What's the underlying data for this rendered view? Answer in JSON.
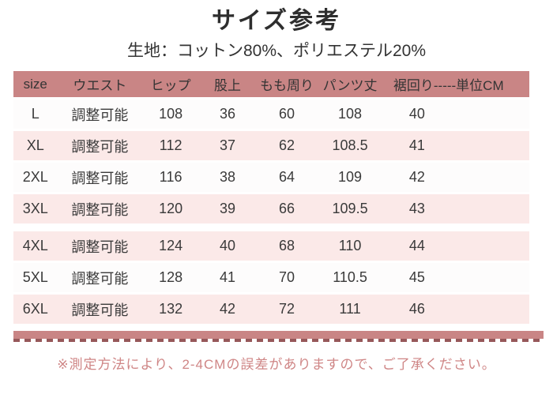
{
  "page": {
    "title": "サイズ参考",
    "subtitle": "生地：コットン80%、ポリエステル20%",
    "footnote": "※測定方法により、2-4CMの誤差がありますので、ご了承ください。"
  },
  "table": {
    "headers": [
      "size",
      "ウエスト",
      "ヒップ",
      "股上",
      "もも周り",
      "パンツ丈",
      "裾回り-----単位CM"
    ],
    "rows": [
      [
        "L",
        "調整可能",
        "108",
        "36",
        "60",
        "108",
        "40"
      ],
      [
        "XL",
        "調整可能",
        "112",
        "37",
        "62",
        "108.5",
        "41"
      ],
      [
        "2XL",
        "調整可能",
        "116",
        "38",
        "64",
        "109",
        "42"
      ],
      [
        "3XL",
        "調整可能",
        "120",
        "39",
        "66",
        "109.5",
        "43"
      ],
      [
        "4XL",
        "調整可能",
        "124",
        "40",
        "68",
        "110",
        "44"
      ],
      [
        "5XL",
        "調整可能",
        "128",
        "41",
        "70",
        "110.5",
        "45"
      ],
      [
        "6XL",
        "調整可能",
        "132",
        "42",
        "72",
        "111",
        "46"
      ]
    ],
    "row_tints": [
      false,
      true,
      false,
      true,
      true,
      false,
      true
    ],
    "gap_before_row_index": 4
  },
  "colors": {
    "accent": "#c98585",
    "row_tint": "#fbe9e8",
    "row_light": "#fdfcfc",
    "note_text": "#cf8686",
    "dash": "#96585a",
    "body_text": "#3a3a3a"
  }
}
